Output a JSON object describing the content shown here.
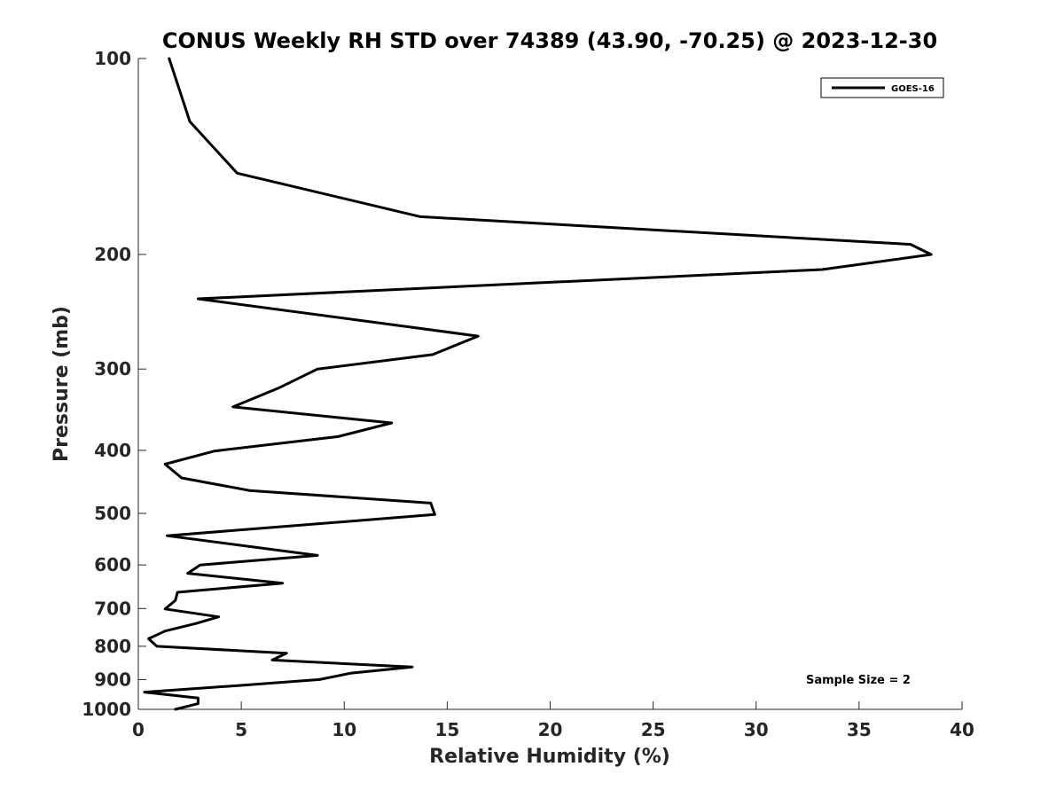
{
  "chart_data": {
    "type": "line",
    "title": "CONUS Weekly RH STD over 74389 (43.90, -70.25) @ 2023-12-30",
    "xlabel": "Relative Humidity (%)",
    "ylabel": "Pressure (mb)",
    "xlim": [
      0,
      40
    ],
    "ylim": [
      100,
      1000
    ],
    "y_scale": "log",
    "y_reversed": true,
    "grid": false,
    "legend_position": "top-right",
    "x_ticks": [
      0,
      5,
      10,
      15,
      20,
      25,
      30,
      35,
      40
    ],
    "x_tick_labels": [
      "0",
      "5",
      "10",
      "15",
      "20",
      "25",
      "30",
      "35",
      "40"
    ],
    "y_ticks": [
      100,
      200,
      300,
      400,
      500,
      600,
      700,
      800,
      900,
      1000
    ],
    "y_tick_labels": [
      "100",
      "200",
      "300",
      "400",
      "500",
      "600",
      "700",
      "800",
      "900",
      "1000"
    ],
    "series": [
      {
        "name": "GOES-16",
        "color": "#000000",
        "points": [
          [
            1.5,
            100
          ],
          [
            2.5,
            125
          ],
          [
            4.8,
            150
          ],
          [
            13.7,
            175
          ],
          [
            37.5,
            193
          ],
          [
            38.5,
            200
          ],
          [
            33.2,
            211
          ],
          [
            2.9,
            234
          ],
          [
            16.5,
            267
          ],
          [
            14.3,
            285
          ],
          [
            8.7,
            300
          ],
          [
            6.8,
            321
          ],
          [
            4.6,
            343
          ],
          [
            12.3,
            363
          ],
          [
            9.7,
            381
          ],
          [
            3.7,
            401
          ],
          [
            1.3,
            420
          ],
          [
            2.1,
            441
          ],
          [
            5.4,
            461
          ],
          [
            14.2,
            482
          ],
          [
            14.4,
            502
          ],
          [
            1.4,
            541
          ],
          [
            8.7,
            580
          ],
          [
            3.0,
            600
          ],
          [
            2.4,
            618
          ],
          [
            7.0,
            640
          ],
          [
            1.9,
            661
          ],
          [
            1.8,
            680
          ],
          [
            1.3,
            701
          ],
          [
            3.9,
            721
          ],
          [
            2.8,
            738
          ],
          [
            1.3,
            758
          ],
          [
            0.5,
            779
          ],
          [
            0.9,
            800
          ],
          [
            7.2,
            820
          ],
          [
            6.5,
            840
          ],
          [
            13.3,
            861
          ],
          [
            10.3,
            880
          ],
          [
            8.8,
            900
          ],
          [
            4.9,
            919
          ],
          [
            0.3,
            941
          ],
          [
            2.9,
            961
          ],
          [
            2.9,
            980
          ],
          [
            1.8,
            1000
          ]
        ]
      }
    ],
    "annotations": [
      "Sample Size = 2"
    ]
  }
}
